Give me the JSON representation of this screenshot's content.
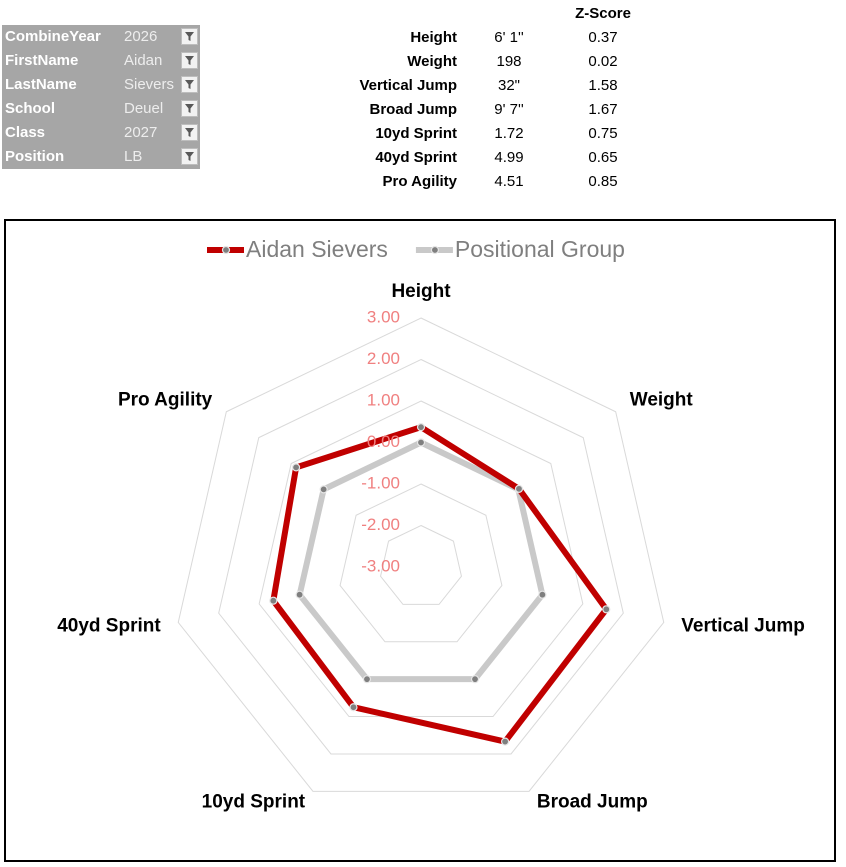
{
  "filters": [
    {
      "label": "CombineYear",
      "value": 2026
    },
    {
      "label": "FirstName",
      "value": "Aidan"
    },
    {
      "label": "LastName",
      "value": "Sievers"
    },
    {
      "label": "School",
      "value": "Deuel"
    },
    {
      "label": "Class",
      "value": 2027
    },
    {
      "label": "Position",
      "value": "LB"
    }
  ],
  "stats": {
    "header": "Z-Score",
    "rows": [
      {
        "label": "Height",
        "value": "6' 1''",
        "z": 0.37
      },
      {
        "label": "Weight",
        "value": 198,
        "z": 0.02
      },
      {
        "label": "Vertical Jump",
        "value": "32\"",
        "z": 1.58
      },
      {
        "label": "Broad Jump",
        "value": "9' 7''",
        "z": 1.67
      },
      {
        "label": "10yd Sprint",
        "value": 1.72,
        "z": 0.75
      },
      {
        "label": "40yd Sprint",
        "value": 4.99,
        "z": 0.65
      },
      {
        "label": "Pro Agility",
        "value": 4.51,
        "z": 0.85
      }
    ]
  },
  "chart_data": {
    "type": "radar",
    "categories": [
      "Height",
      "Weight",
      "Vertical Jump",
      "Broad Jump",
      "10yd Sprint",
      "40yd Sprint",
      "Pro Agility"
    ],
    "series": [
      {
        "name": "Aidan Sievers",
        "color": "#c00000",
        "values": [
          0.37,
          0.02,
          1.58,
          1.67,
          0.75,
          0.65,
          0.85
        ]
      },
      {
        "name": "Positional Group",
        "color": "#c9c9c9",
        "values": [
          0,
          0,
          0,
          0,
          0,
          0,
          0
        ]
      }
    ],
    "ylim": [
      -3,
      3
    ],
    "yticks": [
      {
        "value": 3,
        "label": "3.00"
      },
      {
        "value": 2,
        "label": "2.00"
      },
      {
        "value": 1,
        "label": "1.00"
      },
      {
        "value": 0,
        "label": "0.00"
      },
      {
        "value": -1,
        "label": "-1.00"
      },
      {
        "value": -2,
        "label": "-2.00"
      },
      {
        "value": -3,
        "label": "-3.00"
      }
    ],
    "grid": true,
    "legend": "top"
  }
}
